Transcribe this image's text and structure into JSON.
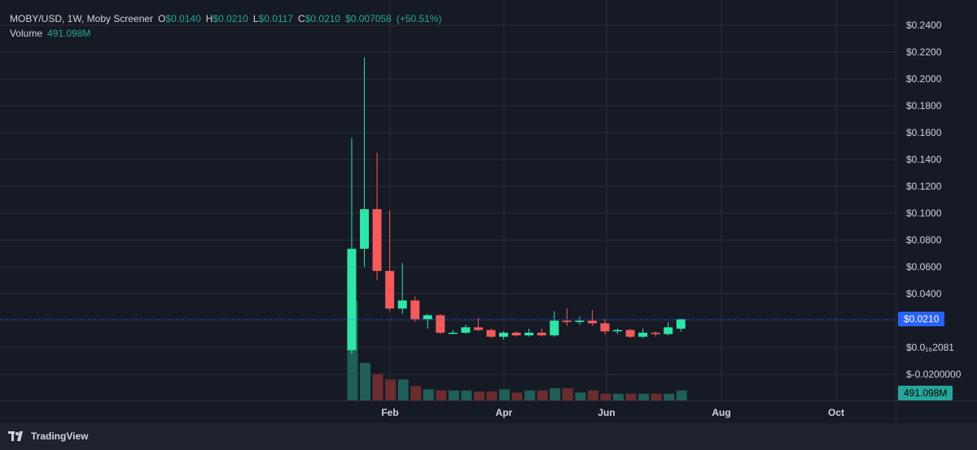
{
  "header": {
    "symbol": "MOBY/USD, 1W, Moby Screener",
    "open_label": "O",
    "open_value": "$0.0140",
    "high_label": "H",
    "high_value": "$0.0210",
    "low_label": "L",
    "low_value": "$0.0117",
    "close_label": "C",
    "close_value": "$0.0210",
    "change_value": "$0.007058",
    "change_percent": "(+50.51%)",
    "volume_label": "Volume",
    "volume_value": "491.098M"
  },
  "price_axis": {
    "ticks": [
      "$0.2400",
      "$0.2200",
      "$0.2000",
      "$0.1800",
      "$0.1600",
      "$0.1400",
      "$0.1200",
      "$0.1000",
      "$0.0800",
      "$0.0600",
      "$0.0400"
    ],
    "low_tick_1": "$0.0₁₆2081",
    "low_tick_2": "$-0.0200000",
    "current_price_badge": "$0.0210",
    "volume_badge": "491.098M"
  },
  "time_axis": {
    "labels": [
      "Feb",
      "Apr",
      "Jun",
      "Aug",
      "Oct"
    ]
  },
  "footer": {
    "brand": "TradingView"
  },
  "colors": {
    "up": "#26a69a",
    "up_bright": "#2fe5a8",
    "down": "#f45b5b",
    "vol_up": "#1f5f57",
    "vol_down": "#6b2c30",
    "grid": "#2a2e39",
    "price_line": "#2962ff",
    "badge_blue": "#2962ff",
    "badge_green": "#26a69a"
  },
  "chart_data": {
    "type": "candlestick",
    "interval": "1W",
    "ylim": [
      -0.03,
      0.25
    ],
    "x_labels": [
      "Feb",
      "Apr",
      "Jun",
      "Aug",
      "Oct"
    ],
    "last_price": 0.021,
    "candles": [
      {
        "o": -0.002,
        "h": 0.156,
        "l": -0.005,
        "c": 0.0735,
        "v": 0.9
      },
      {
        "o": 0.0735,
        "h": 0.216,
        "l": 0.06,
        "c": 0.103,
        "v": 0.34
      },
      {
        "o": 0.103,
        "h": 0.145,
        "l": 0.05,
        "c": 0.057,
        "v": 0.24
      },
      {
        "o": 0.057,
        "h": 0.102,
        "l": 0.027,
        "c": 0.029,
        "v": 0.19
      },
      {
        "o": 0.029,
        "h": 0.063,
        "l": 0.025,
        "c": 0.035,
        "v": 0.19
      },
      {
        "o": 0.035,
        "h": 0.038,
        "l": 0.019,
        "c": 0.021,
        "v": 0.13
      },
      {
        "o": 0.021,
        "h": 0.025,
        "l": 0.014,
        "c": 0.024,
        "v": 0.1
      },
      {
        "o": 0.024,
        "h": 0.025,
        "l": 0.01,
        "c": 0.011,
        "v": 0.09
      },
      {
        "o": 0.011,
        "h": 0.013,
        "l": 0.01,
        "c": 0.011,
        "v": 0.09
      },
      {
        "o": 0.011,
        "h": 0.017,
        "l": 0.01,
        "c": 0.015,
        "v": 0.09
      },
      {
        "o": 0.015,
        "h": 0.022,
        "l": 0.012,
        "c": 0.013,
        "v": 0.08
      },
      {
        "o": 0.013,
        "h": 0.014,
        "l": 0.007,
        "c": 0.008,
        "v": 0.08
      },
      {
        "o": 0.008,
        "h": 0.012,
        "l": 0.006,
        "c": 0.011,
        "v": 0.1
      },
      {
        "o": 0.011,
        "h": 0.012,
        "l": 0.008,
        "c": 0.009,
        "v": 0.07
      },
      {
        "o": 0.009,
        "h": 0.014,
        "l": 0.008,
        "c": 0.011,
        "v": 0.09
      },
      {
        "o": 0.011,
        "h": 0.014,
        "l": 0.008,
        "c": 0.009,
        "v": 0.09
      },
      {
        "o": 0.009,
        "h": 0.027,
        "l": 0.008,
        "c": 0.02,
        "v": 0.11
      },
      {
        "o": 0.02,
        "h": 0.029,
        "l": 0.016,
        "c": 0.019,
        "v": 0.11
      },
      {
        "o": 0.019,
        "h": 0.023,
        "l": 0.017,
        "c": 0.02,
        "v": 0.07
      },
      {
        "o": 0.02,
        "h": 0.028,
        "l": 0.016,
        "c": 0.018,
        "v": 0.09
      },
      {
        "o": 0.018,
        "h": 0.021,
        "l": 0.01,
        "c": 0.012,
        "v": 0.06
      },
      {
        "o": 0.012,
        "h": 0.014,
        "l": 0.01,
        "c": 0.013,
        "v": 0.06
      },
      {
        "o": 0.013,
        "h": 0.014,
        "l": 0.007,
        "c": 0.008,
        "v": 0.06
      },
      {
        "o": 0.008,
        "h": 0.014,
        "l": 0.007,
        "c": 0.011,
        "v": 0.06
      },
      {
        "o": 0.011,
        "h": 0.012,
        "l": 0.008,
        "c": 0.01,
        "v": 0.06
      },
      {
        "o": 0.01,
        "h": 0.019,
        "l": 0.009,
        "c": 0.015,
        "v": 0.06
      },
      {
        "o": 0.014,
        "h": 0.021,
        "l": 0.0117,
        "c": 0.021,
        "v": 0.09
      }
    ]
  }
}
